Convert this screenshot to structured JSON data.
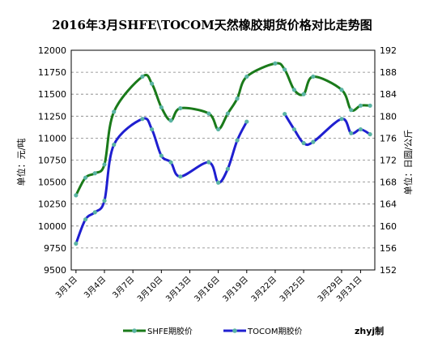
{
  "chart_data": {
    "type": "line",
    "title": "2016年3月SHFE\\TOCOM天然橡胶期货价格对比走势图",
    "ylabel_left": "单位：元/吨",
    "ylabel_right": "单位：日圆/公斤",
    "y_left_ticks": [
      "12000",
      "11750",
      "11500",
      "11250",
      "11000",
      "10750",
      "10500",
      "10250",
      "10000",
      "9750",
      "9500"
    ],
    "y_right_ticks": [
      "192",
      "188",
      "184",
      "180",
      "176",
      "172",
      "168",
      "164",
      "160",
      "156",
      "152"
    ],
    "ylim_left": [
      9500,
      12000
    ],
    "ylim_right": [
      152,
      192
    ],
    "x_ticks": [
      "3月1日",
      "3月4日",
      "3月7日",
      "3月10日",
      "3月13日",
      "3月16日",
      "3月19日",
      "3月22日",
      "3月25日",
      "3月29日",
      "3月31日"
    ],
    "x_tick_days": [
      1,
      4,
      7,
      10,
      13,
      16,
      19,
      22,
      25,
      29,
      31
    ],
    "grid": true,
    "legend_position": "bottom",
    "credit": "zhyj制",
    "series": [
      {
        "name": "SHFE期胶价",
        "axis": "left",
        "color": "#1a7a1a",
        "marker_color": "#5ab4a4",
        "points": [
          {
            "day": 1,
            "value": 10350
          },
          {
            "day": 2,
            "value": 10550
          },
          {
            "day": 3,
            "value": 10600
          },
          {
            "day": 4,
            "value": 10700
          },
          {
            "day": 5,
            "value": 11300
          },
          {
            "day": 8,
            "value": 11700
          },
          {
            "day": 9,
            "value": 11620
          },
          {
            "day": 10,
            "value": 11350
          },
          {
            "day": 11,
            "value": 11200
          },
          {
            "day": 12,
            "value": 11340
          },
          {
            "day": 15,
            "value": 11280
          },
          {
            "day": 16,
            "value": 11100
          },
          {
            "day": 17,
            "value": 11280
          },
          {
            "day": 18,
            "value": 11450
          },
          {
            "day": 19,
            "value": 11700
          },
          {
            "day": 22,
            "value": 11850
          },
          {
            "day": 23,
            "value": 11780
          },
          {
            "day": 24,
            "value": 11550
          },
          {
            "day": 25,
            "value": 11500
          },
          {
            "day": 26,
            "value": 11700
          },
          {
            "day": 29,
            "value": 11550
          },
          {
            "day": 30,
            "value": 11320
          },
          {
            "day": 31,
            "value": 11370
          },
          {
            "day": 32,
            "value": 11370
          }
        ]
      },
      {
        "name": "TOCOM期胶价",
        "axis": "right",
        "color": "#1f1fd0",
        "marker_color": "#5ab4a4",
        "points": [
          {
            "day": 1,
            "value": 156.8
          },
          {
            "day": 2,
            "value": 161.2
          },
          {
            "day": 3,
            "value": 162.5
          },
          {
            "day": 4,
            "value": 164.6
          },
          {
            "day": 5,
            "value": 174.8
          },
          {
            "day": 8,
            "value": 179.5
          },
          {
            "day": 9,
            "value": 177.6
          },
          {
            "day": 10,
            "value": 172.8
          },
          {
            "day": 11,
            "value": 171.6
          },
          {
            "day": 12,
            "value": 169.0
          },
          {
            "day": 15,
            "value": 171.6
          },
          {
            "day": 16,
            "value": 167.9
          },
          {
            "day": 17,
            "value": 170.4
          },
          {
            "day": 18,
            "value": 175.6
          },
          {
            "day": 19,
            "value": 179.0
          },
          {
            "day": 23,
            "value": 180.4
          },
          {
            "day": 24,
            "value": 177.6
          },
          {
            "day": 25,
            "value": 175.1
          },
          {
            "day": 26,
            "value": 175.3
          },
          {
            "day": 29,
            "value": 179.5
          },
          {
            "day": 30,
            "value": 176.9
          },
          {
            "day": 31,
            "value": 177.6
          },
          {
            "day": 32,
            "value": 176.7
          }
        ]
      }
    ]
  }
}
